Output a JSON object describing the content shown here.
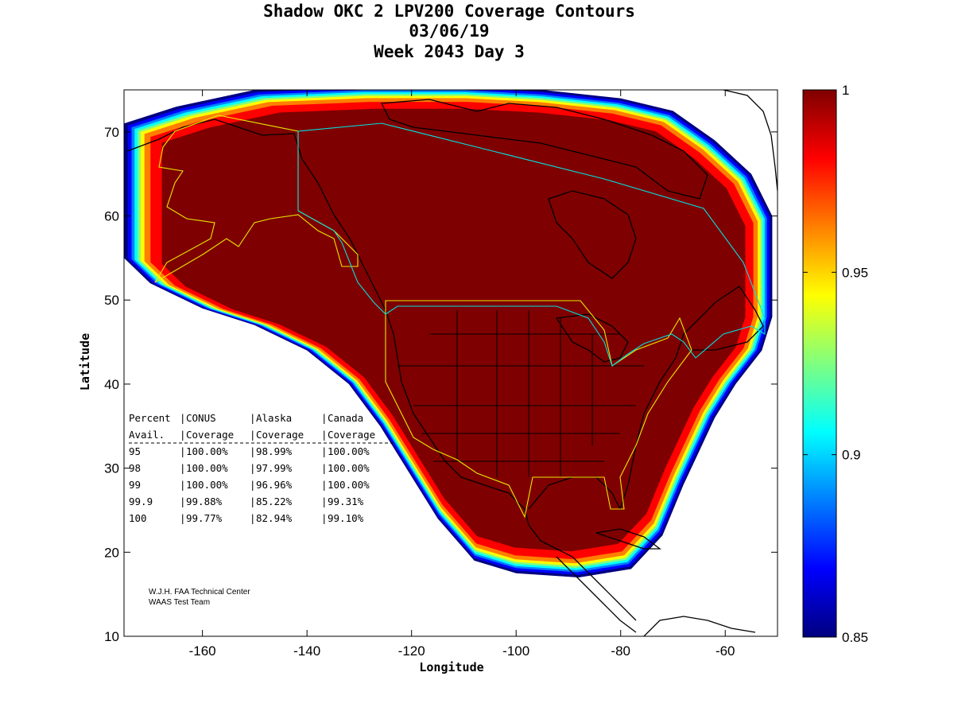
{
  "chart_data": {
    "type": "heatmap",
    "title_lines": [
      "Shadow OKC 2 LPV200 Coverage Contours",
      "03/06/19",
      "Week 2043 Day 3"
    ],
    "xlabel": "Longitude",
    "ylabel": "Latitude",
    "xlim": [
      -175,
      -50
    ],
    "ylim": [
      10,
      75
    ],
    "xticks": [
      -160,
      -140,
      -120,
      -100,
      -80,
      -60
    ],
    "yticks": [
      10,
      20,
      30,
      40,
      50,
      60,
      70
    ],
    "colorbar": {
      "range": [
        0.85,
        1.0
      ],
      "ticks": [
        0.85,
        0.9,
        0.95,
        1
      ],
      "tick_labels": [
        "0.85",
        "0.9",
        "0.95",
        "1"
      ],
      "colors": [
        "#00007f",
        "#0000ff",
        "#007fff",
        "#00ffff",
        "#7fff7f",
        "#ffff00",
        "#ff7f00",
        "#ff0000",
        "#7f0000"
      ]
    },
    "coverage_region": {
      "description": "Availability contours; interior at 1.0 (dark red), outer edge falling to 0.85",
      "outline_lonlat": [
        [
          -175,
          71
        ],
        [
          -165,
          73
        ],
        [
          -150,
          75
        ],
        [
          -130,
          75.5
        ],
        [
          -110,
          75.5
        ],
        [
          -95,
          75
        ],
        [
          -80,
          74
        ],
        [
          -70,
          72.5
        ],
        [
          -62,
          69
        ],
        [
          -55,
          65
        ],
        [
          -51,
          60
        ],
        [
          -51,
          54
        ],
        [
          -51,
          48
        ],
        [
          -53,
          44
        ],
        [
          -58,
          40
        ],
        [
          -62,
          36
        ],
        [
          -65,
          32
        ],
        [
          -68,
          28
        ],
        [
          -72,
          22
        ],
        [
          -78,
          18
        ],
        [
          -88,
          17
        ],
        [
          -100,
          17.5
        ],
        [
          -108,
          19
        ],
        [
          -115,
          24
        ],
        [
          -120,
          29
        ],
        [
          -126,
          35
        ],
        [
          -132,
          40
        ],
        [
          -140,
          44
        ],
        [
          -150,
          47
        ],
        [
          -160,
          49
        ],
        [
          -170,
          52
        ],
        [
          -175,
          55
        ]
      ]
    },
    "table": {
      "header1": [
        "Percent",
        "CONUS",
        "Alaska",
        "Canada"
      ],
      "header2": [
        "Avail.",
        "Coverage",
        "Coverage",
        "Coverage"
      ],
      "rows": [
        {
          "percent": "95",
          "conus": "100.00%",
          "alaska": "98.99%",
          "canada": "100.00%"
        },
        {
          "percent": "98",
          "conus": "100.00%",
          "alaska": "97.99%",
          "canada": "100.00%"
        },
        {
          "percent": "99",
          "conus": "100.00%",
          "alaska": "96.96%",
          "canada": "100.00%"
        },
        {
          "percent": "99.9",
          "conus": "99.88%",
          "alaska": "85.22%",
          "canada": "99.31%"
        },
        {
          "percent": "100",
          "conus": "99.77%",
          "alaska": "82.94%",
          "canada": "99.10%"
        }
      ]
    },
    "credits": [
      "W.J.H. FAA Technical Center",
      "WAAS Test Team"
    ]
  }
}
